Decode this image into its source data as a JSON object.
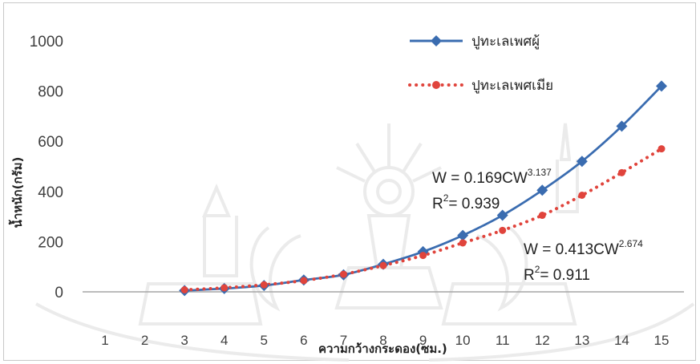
{
  "chart_data": {
    "type": "line",
    "title": "",
    "xlabel": "ความกว้างกระดอง(ซม.)",
    "ylabel": "น้ำหนัก(กรัม)",
    "x_categories": [
      "1",
      "2",
      "3",
      "4",
      "5",
      "6",
      "7",
      "8",
      "9",
      "10",
      "11",
      "12",
      "13",
      "14",
      "15"
    ],
    "ylim": [
      0,
      1000
    ],
    "y_ticks": [
      "1000",
      "800",
      "600",
      "400",
      "200",
      "0"
    ],
    "grid": false,
    "legend_position": "top-right",
    "series": [
      {
        "name": "ปูทะเลเพศผู้",
        "color": "#3a6cb0",
        "style": "solid",
        "marker": "diamond",
        "x": [
          3,
          4,
          5,
          6,
          7,
          8,
          9,
          10,
          11,
          12,
          13,
          14,
          15
        ],
        "y": [
          5,
          13,
          25,
          47,
          68,
          110,
          160,
          225,
          305,
          405,
          520,
          660,
          820
        ]
      },
      {
        "name": "ปูทะเลเพศเมีย",
        "color": "#e0443c",
        "style": "dotted",
        "marker": "circle",
        "x": [
          3,
          4,
          5,
          6,
          7,
          8,
          9,
          10,
          11,
          12,
          13,
          14,
          15
        ],
        "y": [
          8,
          16,
          28,
          45,
          70,
          105,
          145,
          195,
          245,
          305,
          385,
          475,
          570
        ]
      }
    ],
    "annotations": [
      {
        "line1_prefix": "W = 0.169CW",
        "line1_exp": "3.137",
        "line2_prefix": "R",
        "line2_exp": "2",
        "line2_suffix": "= 0.939"
      },
      {
        "line1_prefix": "W = 0.413CW",
        "line1_exp": "2.674",
        "line2_prefix": "R",
        "line2_exp": "2",
        "line2_suffix": "= 0.911"
      }
    ]
  }
}
